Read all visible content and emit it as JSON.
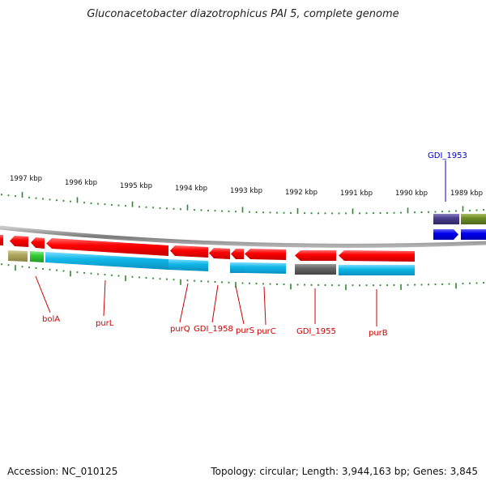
{
  "title": "Gluconacetobacter diazotrophicus PAI 5, complete genome",
  "footer": {
    "accession": "Accession: NC_010125",
    "summary": "Topology: circular; Length: 3,944,163 bp; Genes: 3,845"
  },
  "colors": {
    "tick": "#2a8a2a",
    "backbone": "#8c8c8c",
    "label_red": "#cc0000",
    "label_blue": "#0000cc",
    "gene_red": "#ff0000",
    "gene_cyan": "#10b8e8",
    "gene_grey": "#666666",
    "gene_khaki": "#b0a860",
    "gene_green": "#33cc33",
    "gene_navy": "#4a3f8a",
    "gene_olive": "#6e8c2a",
    "gene_blue": "#0000ee"
  },
  "ruler": {
    "unit": "kbp",
    "labels": [
      "1997 kbp",
      "1996 kbp",
      "1995 kbp",
      "1994 kbp",
      "1993 kbp",
      "1992 kbp",
      "1991 kbp",
      "1990 kbp",
      "1989 kbp"
    ]
  },
  "genes": [
    {
      "label": "bolA",
      "color": "red"
    },
    {
      "label": "purL",
      "color": "red"
    },
    {
      "label": "purQ",
      "color": "red"
    },
    {
      "label": "GDI_1958",
      "color": "red"
    },
    {
      "label": "purS",
      "color": "red"
    },
    {
      "label": "purC",
      "color": "red"
    },
    {
      "label": "GDI_1955",
      "color": "red"
    },
    {
      "label": "purB",
      "color": "red"
    },
    {
      "label": "GDI_1953",
      "color": "blue"
    }
  ]
}
